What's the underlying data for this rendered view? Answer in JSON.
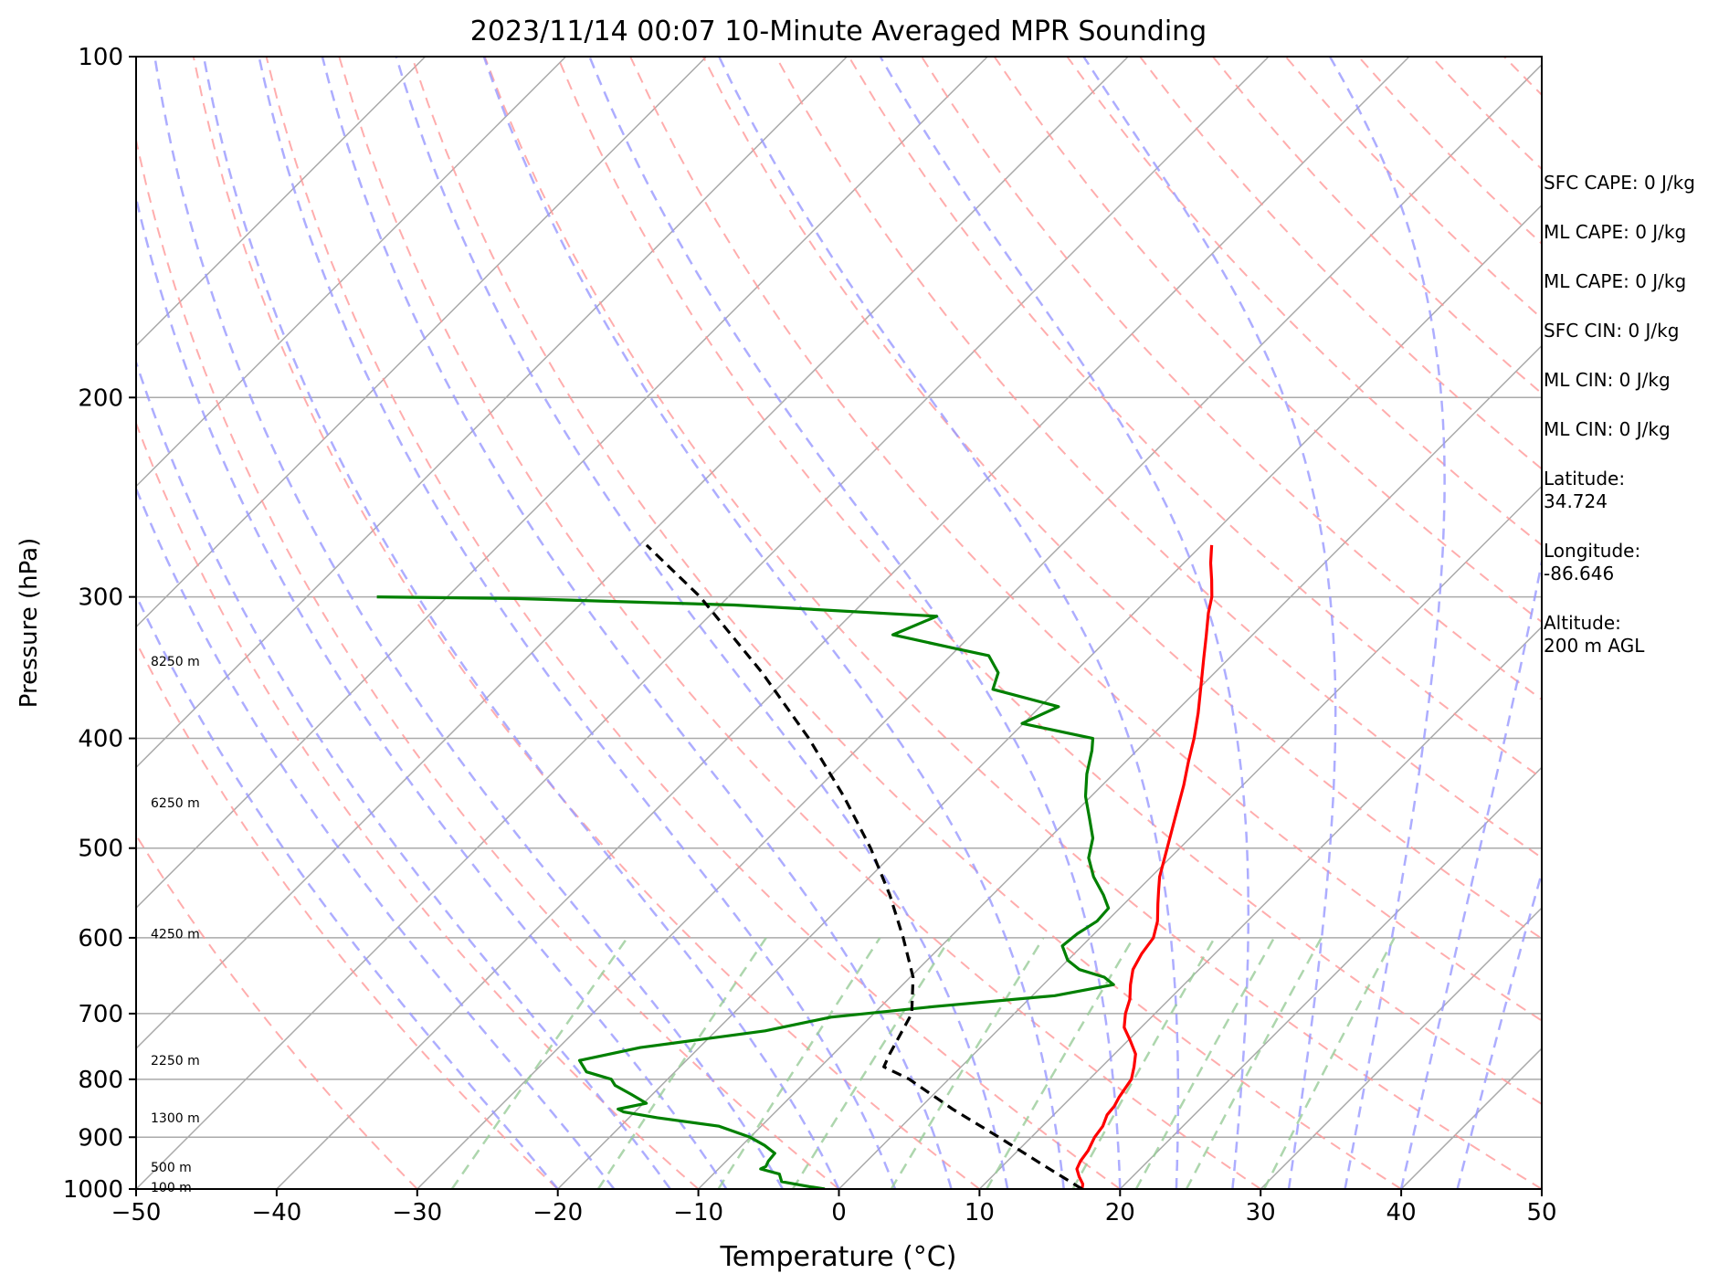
{
  "chart_data": {
    "type": "line",
    "title": "2023/11/14 00:07 10-Minute Averaged MPR Sounding",
    "xlabel": "Temperature (°C)",
    "ylabel": "Pressure (hPa)",
    "xlim": [
      -50,
      50
    ],
    "ylim": [
      1000,
      100
    ],
    "y_scale": "log",
    "skew_deg": 45,
    "x_ticks": [
      -50,
      -40,
      -30,
      -20,
      -10,
      0,
      10,
      20,
      30,
      40,
      50
    ],
    "x_tick_labels": [
      "−50",
      "−40",
      "−30",
      "−20",
      "−10",
      "0",
      "10",
      "20",
      "30",
      "40",
      "50"
    ],
    "y_ticks": [
      100,
      200,
      300,
      400,
      500,
      600,
      700,
      800,
      900,
      1000
    ],
    "y_tick_labels": [
      "100",
      "200",
      "300",
      "400",
      "500",
      "600",
      "700",
      "800",
      "900",
      "1000"
    ],
    "grid": true,
    "series": [
      {
        "kind": "temperature",
        "color": "#ff0000",
        "style": "solid",
        "points": [
          [
            1000,
            17.3
          ],
          [
            990,
            17.0
          ],
          [
            975,
            16.2
          ],
          [
            960,
            15.5
          ],
          [
            945,
            15.2
          ],
          [
            925,
            15.0
          ],
          [
            900,
            14.5
          ],
          [
            880,
            14.3
          ],
          [
            860,
            13.8
          ],
          [
            845,
            13.7
          ],
          [
            830,
            13.4
          ],
          [
            800,
            13.0
          ],
          [
            780,
            12.3
          ],
          [
            760,
            11.5
          ],
          [
            740,
            10.2
          ],
          [
            720,
            8.8
          ],
          [
            700,
            7.9
          ],
          [
            680,
            7.2
          ],
          [
            660,
            6.2
          ],
          [
            640,
            5.3
          ],
          [
            620,
            4.8
          ],
          [
            600,
            4.5
          ],
          [
            580,
            3.6
          ],
          [
            560,
            2.4
          ],
          [
            545,
            1.5
          ],
          [
            530,
            0.6
          ],
          [
            500,
            -0.9
          ],
          [
            470,
            -2.5
          ],
          [
            440,
            -4.2
          ],
          [
            420,
            -5.5
          ],
          [
            400,
            -6.8
          ],
          [
            380,
            -8.3
          ],
          [
            360,
            -10.0
          ],
          [
            340,
            -11.8
          ],
          [
            325,
            -13.2
          ],
          [
            310,
            -14.7
          ],
          [
            300,
            -15.6
          ],
          [
            290,
            -16.8
          ],
          [
            280,
            -18.1
          ],
          [
            270,
            -19.3
          ]
        ]
      },
      {
        "kind": "dewpoint",
        "color": "#008000",
        "style": "solid",
        "points": [
          [
            1000,
            -1.0
          ],
          [
            995,
            -2.3
          ],
          [
            985,
            -4.6
          ],
          [
            970,
            -5.3
          ],
          [
            960,
            -7.0
          ],
          [
            955,
            -6.8
          ],
          [
            945,
            -7.0
          ],
          [
            930,
            -7.1
          ],
          [
            915,
            -8.4
          ],
          [
            900,
            -10.0
          ],
          [
            880,
            -13.0
          ],
          [
            865,
            -18.0
          ],
          [
            855,
            -20.8
          ],
          [
            850,
            -21.4
          ],
          [
            840,
            -19.8
          ],
          [
            825,
            -21.5
          ],
          [
            810,
            -23.3
          ],
          [
            800,
            -24.0
          ],
          [
            788,
            -26.3
          ],
          [
            770,
            -27.6
          ],
          [
            750,
            -24.2
          ],
          [
            725,
            -16.5
          ],
          [
            705,
            -12.8
          ],
          [
            690,
            -6.2
          ],
          [
            675,
            1.6
          ],
          [
            660,
            5.0
          ],
          [
            650,
            3.8
          ],
          [
            640,
            1.5
          ],
          [
            628,
            0.0
          ],
          [
            610,
            -1.4
          ],
          [
            595,
            -1.2
          ],
          [
            580,
            -0.7
          ],
          [
            565,
            -0.8
          ],
          [
            550,
            -2.1
          ],
          [
            530,
            -4.1
          ],
          [
            510,
            -5.8
          ],
          [
            490,
            -6.9
          ],
          [
            470,
            -8.6
          ],
          [
            450,
            -10.4
          ],
          [
            430,
            -11.9
          ],
          [
            410,
            -13.2
          ],
          [
            400,
            -14.0
          ],
          [
            388,
            -20.1
          ],
          [
            375,
            -18.7
          ],
          [
            362,
            -24.6
          ],
          [
            350,
            -25.4
          ],
          [
            338,
            -27.3
          ],
          [
            333,
            -30.3
          ],
          [
            324,
            -35.6
          ],
          [
            312,
            -33.8
          ],
          [
            305,
            -49.0
          ],
          [
            301,
            -65.0
          ],
          [
            300,
            -75.0
          ]
        ]
      },
      {
        "kind": "parcel",
        "color": "#000000",
        "style": "dashed",
        "points": [
          [
            1000,
            17.3
          ],
          [
            950,
            12.6
          ],
          [
            900,
            7.7
          ],
          [
            850,
            2.4
          ],
          [
            800,
            -2.8
          ],
          [
            780,
            -5.5
          ],
          [
            760,
            -6.0
          ],
          [
            700,
            -7.3
          ],
          [
            650,
            -9.8
          ],
          [
            600,
            -13.3
          ],
          [
            550,
            -17.3
          ],
          [
            500,
            -22.0
          ],
          [
            450,
            -27.6
          ],
          [
            400,
            -34.2
          ],
          [
            350,
            -42.2
          ],
          [
            300,
            -52.0
          ],
          [
            270,
            -59.5
          ]
        ]
      }
    ],
    "height_labels": [
      {
        "text": "8250 m",
        "p": 342
      },
      {
        "text": "6250 m",
        "p": 456
      },
      {
        "text": "4250 m",
        "p": 595
      },
      {
        "text": "2250 m",
        "p": 770
      },
      {
        "text": "1300 m",
        "p": 865
      },
      {
        "text": "500 m",
        "p": 956
      },
      {
        "text": "100 m",
        "p": 996
      }
    ],
    "background_lines": {
      "isotherms": {
        "color": "#aaaaaa",
        "values": [
          -110,
          -100,
          -90,
          -80,
          -70,
          -60,
          -50,
          -40,
          -30,
          -20,
          -10,
          0,
          10,
          20,
          30,
          40,
          50
        ]
      },
      "dry_adiabats": {
        "color": "#ff9999",
        "style": "dashed"
      },
      "moist_adiabats": {
        "color": "#9999ff",
        "style": "dashed"
      },
      "mixing_ratio_lines": {
        "color": "#99cc99",
        "style": "dashed"
      }
    },
    "annotations": [
      {
        "id": "sfc-cape",
        "text": "SFC CAPE: 0 J/kg"
      },
      {
        "id": "ml-cape-1",
        "text": "ML CAPE: 0 J/kg"
      },
      {
        "id": "ml-cape-2",
        "text": "ML CAPE: 0 J/kg"
      },
      {
        "id": "sfc-cin",
        "text": "SFC CIN: 0 J/kg"
      },
      {
        "id": "ml-cin-1",
        "text": "ML CIN: 0 J/kg"
      },
      {
        "id": "ml-cin-2",
        "text": "ML CIN: 0 J/kg"
      },
      {
        "id": "latitude",
        "text": "Latitude:\n34.724"
      },
      {
        "id": "longitude",
        "text": "Longitude:\n-86.646"
      },
      {
        "id": "altitude",
        "text": "Altitude:\n200 m AGL"
      }
    ]
  }
}
